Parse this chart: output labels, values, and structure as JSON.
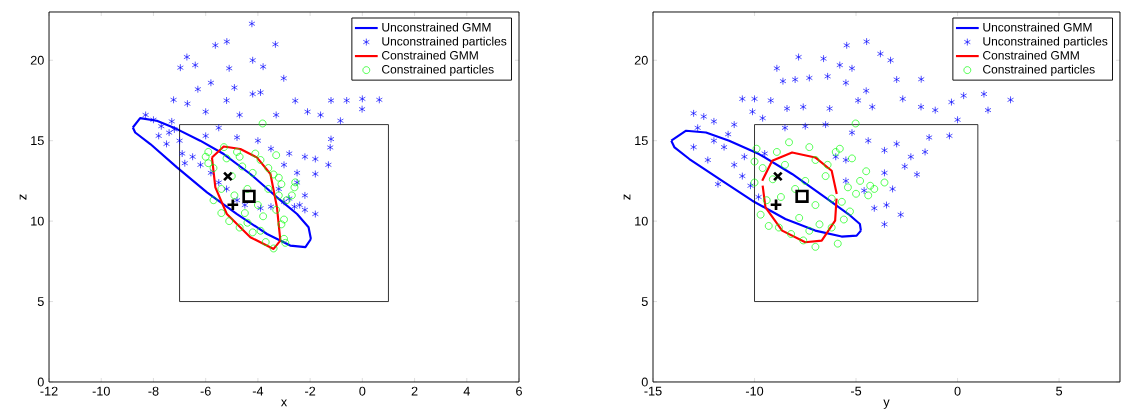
{
  "chart_data": [
    {
      "type": "scatter",
      "xlabel": "x",
      "ylabel": "z",
      "xlim": [
        -12,
        6
      ],
      "ylim": [
        0,
        23
      ],
      "xticks": [
        -12,
        -10,
        -8,
        -6,
        -4,
        -2,
        0,
        2,
        4,
        6
      ],
      "yticks": [
        0,
        5,
        10,
        15,
        20
      ],
      "legend": "top right",
      "series": [
        {
          "name": "Unconstrained GMM",
          "type": "line",
          "color": "#0000ff",
          "x": [
            -8.79,
            -8.51,
            -7.87,
            -7.1,
            -6.21,
            -5.31,
            -4.29,
            -3.27,
            -2.5,
            -2.06,
            -1.97
          ],
          "values": [
            15.82,
            16.4,
            16.24,
            15.72,
            15.0,
            14.17,
            12.93,
            11.48,
            10.44,
            9.62,
            8.89
          ]
        },
        {
          "type": "line",
          "color": "#0000ff",
          "x": [
            -8.79,
            -8.7,
            -8.12,
            -7.1,
            -5.95,
            -4.8,
            -3.65,
            -2.76,
            -2.18,
            -1.97
          ],
          "values": [
            15.82,
            15.51,
            14.79,
            13.34,
            11.79,
            10.44,
            9.2,
            8.48,
            8.38,
            8.89
          ]
        },
        {
          "name": "Unconstrained particles",
          "marker": "cross",
          "color": "#0000ff",
          "x": [
            -4.23,
            -5.19,
            -5.63,
            -3.33,
            -6.72,
            -6.97,
            -6.4,
            -5.1,
            -4.2,
            -3.8,
            -3.01,
            -6.3,
            -5.8,
            -4.9,
            -4.2,
            -3.9,
            -5.2,
            -6.7,
            -7.23,
            -6.0,
            -4.7,
            -3.3,
            -2.57,
            -2.1,
            -1.6,
            -1.2,
            -0.6,
            0.0,
            0.65,
            -0.01,
            -0.84,
            -1.2,
            -1.23,
            -1.3,
            -2.2,
            -1.8,
            -1.8,
            -2.5,
            -2.8,
            -3.5,
            -3.0,
            -2.5,
            -2.2,
            -1.8,
            -2.4,
            -2.8,
            -3.2,
            -8.3,
            -8.0,
            -7.7,
            -7.4,
            -7.0,
            -7.5,
            -6.9,
            -6.5,
            -6.2,
            -6.8,
            -5.8,
            -5.5,
            -5.2,
            -4.8,
            -4.5,
            -3.9,
            -3.5,
            -3.0,
            -2.6,
            -2.2,
            -7.8,
            -6.0,
            -5.5,
            -4.8,
            -4.0,
            -7.2,
            -7.3
          ],
          "values": [
            22.27,
            21.16,
            20.93,
            20.99,
            20.2,
            19.54,
            19.7,
            19.5,
            20.0,
            19.6,
            18.88,
            18.2,
            18.6,
            18.3,
            17.9,
            18.0,
            17.5,
            17.3,
            17.54,
            16.8,
            16.6,
            16.6,
            17.48,
            16.8,
            16.6,
            17.5,
            17.5,
            17.6,
            17.54,
            16.96,
            16.24,
            15.1,
            14.58,
            13.5,
            14.0,
            13.86,
            12.93,
            13.0,
            14.2,
            14.5,
            13.5,
            12.4,
            11.6,
            10.44,
            11.0,
            11.4,
            12.0,
            16.6,
            16.3,
            15.9,
            15.5,
            15.0,
            14.8,
            14.2,
            14.0,
            13.5,
            13.6,
            13.0,
            12.4,
            12.0,
            11.3,
            11.0,
            10.8,
            10.9,
            11.2,
            10.9,
            10.7,
            15.3,
            15.3,
            15.8,
            15.2,
            15.0,
            15.7,
            16.2
          ]
        },
        {
          "name": "Constrained GMM",
          "type": "line",
          "color": "#ff0000",
          "x": [
            -5.76,
            -5.31,
            -4.67,
            -4.04,
            -3.52,
            -3.27,
            -3.14
          ],
          "values": [
            13.96,
            14.64,
            14.48,
            13.96,
            12.93,
            10.86,
            8.79
          ]
        },
        {
          "type": "line",
          "color": "#ff0000",
          "x": [
            -5.76,
            -5.63,
            -5.19,
            -4.29,
            -3.4,
            -3.14
          ],
          "values": [
            13.96,
            12.1,
            10.44,
            9.0,
            8.27,
            8.79
          ]
        },
        {
          "name": "Constrained particles",
          "marker": "circle",
          "color": "#00ff00",
          "x": [
            -3.82,
            -5.3,
            -6.0,
            -5.9,
            -5.7,
            -4.8,
            -4.1,
            -3.9,
            -3.6,
            -3.4,
            -3.2,
            -3.1,
            -2.7,
            -2.6,
            -2.57,
            -2.9,
            -3.2,
            -5.4,
            -5.7,
            -5.4,
            -5.1,
            -4.7,
            -4.2,
            -3.7,
            -3.4,
            -3.0,
            -2.95,
            -3.1,
            -3.3,
            -4.6,
            -5.0,
            -4.4,
            -4.0,
            -3.8,
            -4.5,
            -4.9,
            -3.6,
            -4.2,
            -4.7,
            -3.3,
            -5.2,
            -3.0,
            -5.9,
            -4.4,
            -3.9
          ],
          "values": [
            16.07,
            14.6,
            14.0,
            13.6,
            13.3,
            14.3,
            14.2,
            13.8,
            13.3,
            12.9,
            12.7,
            12.3,
            11.6,
            12.1,
            12.41,
            11.3,
            11.6,
            12.0,
            11.3,
            10.5,
            10.0,
            9.6,
            9.3,
            8.7,
            8.3,
            8.9,
            8.65,
            9.8,
            10.7,
            13.4,
            12.8,
            12.0,
            11.0,
            10.3,
            10.5,
            11.6,
            12.0,
            13.0,
            14.0,
            14.1,
            13.9,
            10.1,
            14.3,
            9.9,
            9.4
          ]
        },
        {
          "type": "line",
          "color": "#000000",
          "x": [
            -7,
            1
          ],
          "values": [
            5,
            5
          ]
        },
        {
          "type": "line",
          "color": "#000000",
          "x": [
            -7,
            1
          ],
          "values": [
            16,
            16
          ]
        },
        {
          "type": "line",
          "color": "#000000",
          "x": [
            -7,
            -7
          ],
          "values": [
            5,
            16
          ]
        },
        {
          "type": "line",
          "color": "#000000",
          "x": [
            1,
            1
          ],
          "values": [
            5,
            16
          ]
        },
        {
          "marker": "cross",
          "color": "#000000",
          "x": [
            -5.15
          ],
          "values": [
            12.78
          ]
        },
        {
          "color": "#000000",
          "x": [
            -4.96
          ],
          "values": [
            11.02
          ]
        },
        {
          "marker": "square",
          "color": "#000000",
          "x": [
            -4.34
          ],
          "values": [
            11.54
          ]
        }
      ]
    },
    {
      "type": "scatter",
      "xlabel": "y",
      "ylabel": "z",
      "xlim": [
        -15,
        8
      ],
      "ylim": [
        0,
        23
      ],
      "xticks": [
        -15,
        -10,
        -5,
        0,
        5
      ],
      "yticks": [
        0,
        5,
        10,
        15,
        20
      ],
      "legend": "top right",
      "series": [
        {
          "name": "Unconstrained GMM",
          "type": "line",
          "color": "#0000ff",
          "x": [
            -14.1,
            -13.37,
            -12.39,
            -11.25,
            -9.78,
            -8.15,
            -6.52,
            -5.38,
            -4.81,
            -4.76
          ],
          "values": [
            15.0,
            15.62,
            15.51,
            15.0,
            14.17,
            12.93,
            11.48,
            10.44,
            9.82,
            9.41
          ]
        },
        {
          "type": "line",
          "color": "#0000ff",
          "x": [
            -14.1,
            -13.94,
            -13.21,
            -11.74,
            -10.11,
            -8.48,
            -7.01,
            -5.71,
            -4.97,
            -4.76
          ],
          "values": [
            15.0,
            14.58,
            13.86,
            12.62,
            11.27,
            10.13,
            9.41,
            9.04,
            9.1,
            9.41
          ]
        },
        {
          "name": "Unconstrained particles",
          "marker": "cross",
          "color": "#0000ff",
          "x": [
            -4.48,
            -5.46,
            -3.8,
            -3.3,
            -6.6,
            -7.83,
            -8.9,
            -5.8,
            -5.2,
            -6.4,
            -8.6,
            -8.0,
            -7.3,
            -5.5,
            -3.0,
            -1.79,
            -4.5,
            -10.0,
            -10.6,
            -9.2,
            -8.4,
            -7.6,
            -6.3,
            -4.9,
            -4.2,
            -2.7,
            -1.8,
            -1.1,
            -0.3,
            0.3,
            1.3,
            2.61,
            1.5,
            0.0,
            -0.4,
            -1.4,
            -1.6,
            -2.3,
            -3.0,
            -3.6,
            -4.4,
            -5.2,
            -2.0,
            -2.6,
            -3.6,
            -3.2,
            -3.5,
            -2.8,
            -3.6,
            -4.1,
            -4.6,
            -5.5,
            -10.1,
            -9.6,
            -11.0,
            -13.0,
            -12.5,
            -12.0,
            -12.8,
            -13.0,
            -12.3,
            -11.8,
            -11.5,
            -11.0,
            -10.6,
            -10.2,
            -9.8,
            -10.5,
            -12.0,
            -11.3,
            -9.5,
            -8.5,
            -7.5,
            -6.5,
            -6.0,
            -5.5
          ],
          "values": [
            21.16,
            20.93,
            20.4,
            20.0,
            20.1,
            20.2,
            19.5,
            19.7,
            19.5,
            19.0,
            18.7,
            18.8,
            18.9,
            18.6,
            18.8,
            18.82,
            18.1,
            17.6,
            17.6,
            17.5,
            17.0,
            17.1,
            17.0,
            17.5,
            17.1,
            17.6,
            17.1,
            16.9,
            17.4,
            17.8,
            17.9,
            17.54,
            16.9,
            16.3,
            15.3,
            15.2,
            14.3,
            14.0,
            14.8,
            14.4,
            15.0,
            15.5,
            12.9,
            13.4,
            13.0,
            12.0,
            11.0,
            10.4,
            9.8,
            10.8,
            11.9,
            12.5,
            16.8,
            16.4,
            16.0,
            16.7,
            16.5,
            16.2,
            15.8,
            14.6,
            13.8,
            12.3,
            14.6,
            13.5,
            12.8,
            12.2,
            11.5,
            14.0,
            15.0,
            15.4,
            14.2,
            15.8,
            15.9,
            16.0,
            14.0,
            13.8
          ]
        },
        {
          "name": "Constrained GMM",
          "type": "line",
          "color": "#ff0000",
          "x": [
            -9.62,
            -9.13,
            -8.15,
            -7.01,
            -6.2,
            -5.95
          ],
          "values": [
            12.51,
            13.75,
            14.27,
            13.96,
            13.13,
            11.69
          ]
        },
        {
          "type": "line",
          "color": "#ff0000",
          "x": [
            -9.6,
            -9.46,
            -8.64,
            -7.5,
            -6.69,
            -6.03,
            -5.96
          ],
          "values": [
            12.2,
            10.86,
            9.41,
            8.69,
            8.79,
            10.03,
            11.4
          ]
        },
        {
          "name": "Constrained particles",
          "marker": "circle",
          "color": "#00ff00",
          "x": [
            -5.02,
            -8.3,
            -7.3,
            -9.9,
            -10.0,
            -10.0,
            -9.6,
            -9.4,
            -9.7,
            -9.3,
            -8.8,
            -8.2,
            -7.6,
            -7.0,
            -5.9,
            -6.2,
            -5.6,
            -5.7,
            -5.4,
            -4.8,
            -4.5,
            -4.3,
            -4.1,
            -3.6,
            -4.4,
            -5.0,
            -5.2,
            -6.0,
            -5.8,
            -8.5,
            -8.0,
            -7.5,
            -7.0,
            -6.5,
            -8.7,
            -7.8,
            -6.8,
            -6.4,
            -7.0,
            -8.9,
            -9.1,
            -6.2,
            -7.3,
            -5.3
          ],
          "values": [
            16.07,
            14.9,
            14.6,
            14.5,
            13.7,
            12.4,
            13.3,
            11.3,
            10.4,
            9.7,
            9.6,
            9.2,
            8.8,
            8.4,
            8.6,
            9.6,
            10.1,
            11.2,
            12.1,
            12.5,
            13.1,
            12.2,
            12.0,
            12.4,
            11.6,
            11.7,
            13.9,
            14.3,
            14.5,
            13.5,
            12.0,
            12.5,
            11.0,
            12.8,
            11.5,
            10.2,
            9.8,
            13.5,
            13.8,
            14.3,
            12.6,
            11.4,
            9.4,
            10.6
          ]
        },
        {
          "type": "line",
          "color": "#000000",
          "x": [
            -10,
            1
          ],
          "values": [
            5,
            5
          ]
        },
        {
          "type": "line",
          "color": "#000000",
          "x": [
            -10,
            1
          ],
          "values": [
            16,
            16
          ]
        },
        {
          "type": "line",
          "color": "#000000",
          "x": [
            -10,
            -10
          ],
          "values": [
            5,
            16
          ]
        },
        {
          "type": "line",
          "color": "#000000",
          "x": [
            1,
            1
          ],
          "values": [
            5,
            16
          ]
        },
        {
          "marker": "cross",
          "color": "#000000",
          "x": [
            -8.85
          ],
          "values": [
            12.78
          ]
        },
        {
          "color": "#000000",
          "x": [
            -8.94
          ],
          "values": [
            11.02
          ]
        },
        {
          "marker": "square",
          "color": "#000000",
          "x": [
            -7.66
          ],
          "values": [
            11.54
          ]
        }
      ]
    }
  ]
}
